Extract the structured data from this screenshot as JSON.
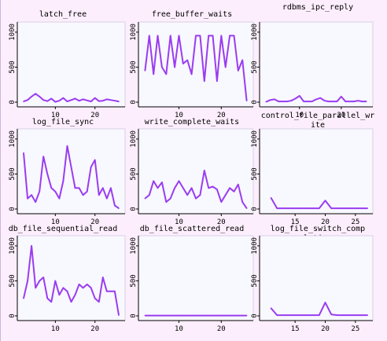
{
  "colors": {
    "background": "#fdeefd",
    "plot_background": "#f8f8ff",
    "line": "#9a3cf0",
    "axis": "#000000"
  },
  "chart_data": [
    {
      "type": "line",
      "title": "latch_free",
      "ylim": [
        0,
        1100
      ],
      "yticks": [
        0,
        500,
        1000
      ],
      "xticks": [
        10,
        20
      ],
      "xlim": [
        1,
        27
      ],
      "x": [
        2,
        3,
        4,
        5,
        6,
        7,
        8,
        9,
        10,
        11,
        12,
        13,
        14,
        15,
        16,
        17,
        18,
        19,
        20,
        21,
        22,
        23,
        24,
        25,
        26
      ],
      "values": [
        10,
        30,
        80,
        120,
        80,
        30,
        15,
        50,
        5,
        20,
        60,
        10,
        30,
        50,
        20,
        40,
        25,
        10,
        60,
        15,
        20,
        40,
        30,
        20,
        10
      ]
    },
    {
      "type": "line",
      "title": "free_buffer_waits",
      "ylim": [
        0,
        1100
      ],
      "yticks": [
        0,
        500,
        1000
      ],
      "xticks": [
        10,
        20
      ],
      "xlim": [
        1,
        27
      ],
      "x": [
        2,
        3,
        4,
        5,
        6,
        7,
        8,
        9,
        10,
        11,
        12,
        13,
        14,
        15,
        16,
        17,
        18,
        19,
        20,
        21,
        22,
        23,
        24,
        25,
        26
      ],
      "values": [
        450,
        950,
        400,
        950,
        500,
        400,
        950,
        500,
        950,
        550,
        600,
        400,
        950,
        950,
        300,
        950,
        950,
        300,
        950,
        500,
        950,
        950,
        450,
        600,
        20
      ]
    },
    {
      "type": "line",
      "title": "rdbms_ipc_reply",
      "ylim": [
        0,
        1100
      ],
      "yticks": [
        0,
        500,
        1000
      ],
      "xticks": [
        10,
        20
      ],
      "xlim": [
        1,
        27
      ],
      "x": [
        2,
        3,
        4,
        5,
        6,
        7,
        8,
        9,
        10,
        11,
        12,
        13,
        14,
        15,
        16,
        17,
        18,
        19,
        20,
        21,
        22,
        23,
        24,
        25,
        26
      ],
      "values": [
        5,
        30,
        40,
        10,
        10,
        10,
        20,
        50,
        90,
        10,
        10,
        10,
        40,
        60,
        20,
        10,
        10,
        10,
        80,
        10,
        10,
        10,
        20,
        10,
        10
      ]
    },
    {
      "type": "line",
      "title": "log_file_sync",
      "ylim": [
        0,
        1100
      ],
      "yticks": [
        0,
        500,
        1000
      ],
      "xticks": [
        10,
        20
      ],
      "xlim": [
        1,
        27
      ],
      "x": [
        2,
        3,
        4,
        5,
        6,
        7,
        8,
        9,
        10,
        11,
        12,
        13,
        14,
        15,
        16,
        17,
        18,
        19,
        20,
        21,
        22,
        23,
        24,
        25,
        26
      ],
      "values": [
        800,
        150,
        200,
        100,
        250,
        750,
        500,
        300,
        250,
        150,
        400,
        900,
        600,
        300,
        300,
        200,
        250,
        600,
        700,
        200,
        300,
        150,
        300,
        50,
        10
      ]
    },
    {
      "type": "line",
      "title": "write_complete_waits",
      "ylim": [
        0,
        1100
      ],
      "yticks": [
        0,
        500,
        1000
      ],
      "xticks": [
        10,
        20
      ],
      "xlim": [
        1,
        27
      ],
      "x": [
        2,
        3,
        4,
        5,
        6,
        7,
        8,
        9,
        10,
        11,
        12,
        13,
        14,
        15,
        16,
        17,
        18,
        19,
        20,
        21,
        22,
        23,
        24,
        25,
        26
      ],
      "values": [
        150,
        200,
        400,
        300,
        380,
        100,
        150,
        300,
        400,
        300,
        200,
        300,
        150,
        200,
        550,
        300,
        320,
        280,
        100,
        200,
        300,
        250,
        350,
        100,
        10
      ]
    },
    {
      "type": "line",
      "title": "control_file_parallel_write",
      "ylim": [
        0,
        1100
      ],
      "yticks": [
        0,
        500,
        1000
      ],
      "xticks": [
        15,
        20,
        25
      ],
      "xlim": [
        9.5,
        27.5
      ],
      "x": [
        11,
        12,
        13,
        14,
        15,
        16,
        17,
        18,
        19,
        20,
        21,
        22,
        23,
        24,
        25,
        26,
        27
      ],
      "values": [
        160,
        10,
        10,
        10,
        10,
        10,
        10,
        10,
        10,
        120,
        10,
        10,
        10,
        10,
        10,
        10,
        10
      ]
    },
    {
      "type": "line",
      "title": "db_file_sequential_read",
      "ylim": [
        0,
        1100
      ],
      "yticks": [
        0,
        500,
        1000
      ],
      "xticks": [
        10,
        20
      ],
      "xlim": [
        1,
        27
      ],
      "x": [
        2,
        3,
        4,
        5,
        6,
        7,
        8,
        9,
        10,
        11,
        12,
        13,
        14,
        15,
        16,
        17,
        18,
        19,
        20,
        21,
        22,
        23,
        24,
        25,
        26
      ],
      "values": [
        250,
        500,
        1000,
        400,
        500,
        550,
        250,
        200,
        500,
        300,
        400,
        350,
        200,
        300,
        450,
        400,
        450,
        400,
        250,
        200,
        550,
        350,
        350,
        350,
        10
      ]
    },
    {
      "type": "line",
      "title": "db_file_scattered_read",
      "ylim": [
        0,
        1100
      ],
      "yticks": [
        0,
        500,
        1000
      ],
      "xticks": [
        10,
        20
      ],
      "xlim": [
        1,
        27
      ],
      "x": [
        2,
        3,
        4,
        5,
        6,
        7,
        8,
        9,
        10,
        11,
        12,
        13,
        14,
        15,
        16,
        17,
        18,
        19,
        20,
        21,
        22,
        23,
        24,
        25,
        26
      ],
      "values": [
        5,
        5,
        5,
        5,
        5,
        5,
        5,
        5,
        5,
        5,
        5,
        5,
        5,
        5,
        5,
        5,
        5,
        5,
        5,
        5,
        5,
        5,
        5,
        5,
        5
      ]
    },
    {
      "type": "line",
      "title": "log_file_switch_completion",
      "ylim": [
        0,
        1100
      ],
      "yticks": [
        0,
        500,
        1000
      ],
      "xticks": [
        15,
        20,
        25
      ],
      "xlim": [
        9.5,
        27.5
      ],
      "x": [
        11,
        12,
        13,
        14,
        15,
        16,
        17,
        18,
        19,
        20,
        21,
        22,
        23,
        24,
        25,
        26,
        27
      ],
      "values": [
        110,
        10,
        10,
        10,
        10,
        10,
        10,
        10,
        10,
        190,
        20,
        10,
        10,
        10,
        10,
        10,
        10
      ]
    }
  ]
}
